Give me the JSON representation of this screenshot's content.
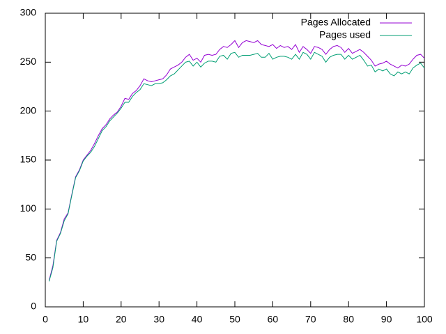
{
  "chart_data": {
    "type": "line",
    "x": [
      1,
      2,
      3,
      4,
      5,
      6,
      7,
      8,
      9,
      10,
      11,
      12,
      13,
      14,
      15,
      16,
      17,
      18,
      19,
      20,
      21,
      22,
      23,
      24,
      25,
      26,
      27,
      28,
      29,
      30,
      31,
      32,
      33,
      34,
      35,
      36,
      37,
      38,
      39,
      40,
      41,
      42,
      43,
      44,
      45,
      46,
      47,
      48,
      49,
      50,
      51,
      52,
      53,
      54,
      55,
      56,
      57,
      58,
      59,
      60,
      61,
      62,
      63,
      64,
      65,
      66,
      67,
      68,
      69,
      70,
      71,
      72,
      73,
      74,
      75,
      76,
      77,
      78,
      79,
      80,
      81,
      82,
      83,
      84,
      85,
      86,
      87,
      88,
      89,
      90,
      91,
      92,
      93,
      94,
      95,
      96,
      97,
      98,
      99,
      100
    ],
    "series": [
      {
        "name": "Pages Allocated",
        "color": "#9400d3",
        "values": [
          27,
          42,
          68,
          76,
          90,
          96,
          115,
          133,
          140,
          150,
          155,
          160,
          167,
          175,
          182,
          186,
          192,
          196,
          199,
          205,
          213,
          212,
          218,
          221,
          226,
          233,
          231,
          230,
          231,
          232,
          233,
          237,
          243,
          245,
          247,
          250,
          255,
          258,
          252,
          254,
          250,
          257,
          258,
          257,
          258,
          263,
          266,
          265,
          268,
          272,
          265,
          270,
          272,
          271,
          270,
          272,
          268,
          267,
          266,
          268,
          264,
          267,
          265,
          266,
          263,
          268,
          260,
          266,
          263,
          259,
          266,
          265,
          263,
          258,
          263,
          266,
          267,
          265,
          260,
          264,
          259,
          261,
          263,
          260,
          256,
          252,
          246,
          248,
          249,
          251,
          248,
          246,
          244,
          247,
          246,
          248,
          253,
          257,
          258,
          254
        ]
      },
      {
        "name": "Pages used",
        "color": "#009e73",
        "values": [
          26,
          40,
          67,
          75,
          88,
          95,
          114,
          132,
          139,
          149,
          154,
          158,
          164,
          172,
          180,
          184,
          190,
          194,
          198,
          203,
          209,
          209,
          215,
          219,
          222,
          228,
          227,
          226,
          228,
          228,
          229,
          232,
          236,
          238,
          242,
          246,
          250,
          251,
          246,
          250,
          245,
          249,
          251,
          251,
          250,
          256,
          257,
          253,
          259,
          260,
          255,
          257,
          257,
          257,
          258,
          259,
          255,
          255,
          259,
          253,
          255,
          256,
          256,
          255,
          253,
          258,
          253,
          260,
          258,
          253,
          260,
          258,
          256,
          250,
          255,
          257,
          258,
          258,
          253,
          257,
          253,
          255,
          257,
          252,
          246,
          247,
          240,
          243,
          241,
          243,
          238,
          236,
          240,
          238,
          240,
          238,
          244,
          247,
          249,
          244
        ]
      }
    ],
    "xlim": [
      0,
      100
    ],
    "xticks": [
      0,
      10,
      20,
      30,
      40,
      50,
      60,
      70,
      80,
      90,
      100
    ],
    "ylim": [
      0,
      300
    ],
    "yticks": [
      0,
      50,
      100,
      150,
      200,
      250,
      300
    ],
    "legend": "upper right"
  }
}
